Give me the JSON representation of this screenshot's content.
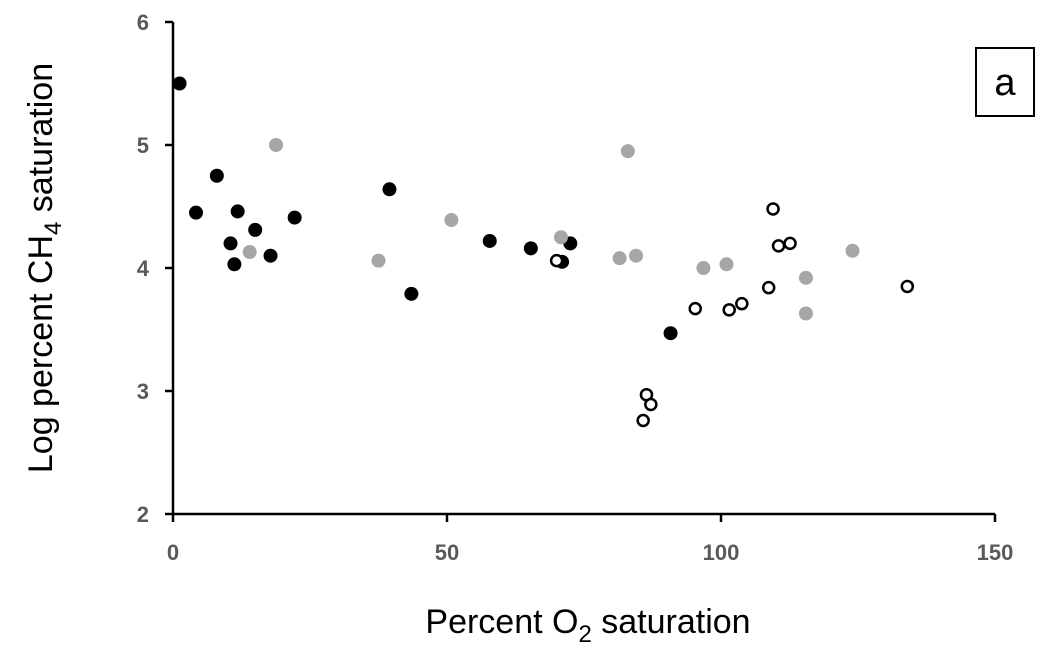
{
  "chart_data": {
    "type": "scatter",
    "panel_label": "a",
    "xlabel": {
      "prefix": "Percent O",
      "sub": "2",
      "suffix": " saturation"
    },
    "ylabel": {
      "prefix": "Log percent CH",
      "sub": "4",
      "suffix": " saturation"
    },
    "xlim": [
      0,
      150
    ],
    "ylim": [
      2,
      6
    ],
    "xticks": [
      "0",
      "50",
      "100",
      "150"
    ],
    "yticks": [
      "2",
      "3",
      "4",
      "5",
      "6"
    ],
    "grid": false,
    "colors": {
      "black": "#000000",
      "gray": "#a6a6a6",
      "open_fill": "#ffffff",
      "open_stroke": "#000000"
    },
    "series": [
      {
        "style": "filled-black",
        "points": [
          {
            "x": 1.2,
            "y": 5.5
          },
          {
            "x": 4.2,
            "y": 4.45
          },
          {
            "x": 8,
            "y": 4.75
          },
          {
            "x": 10.5,
            "y": 4.2
          },
          {
            "x": 11.2,
            "y": 4.03
          },
          {
            "x": 11.8,
            "y": 4.46
          },
          {
            "x": 15,
            "y": 4.31
          },
          {
            "x": 17.8,
            "y": 4.1
          },
          {
            "x": 22.2,
            "y": 4.41
          },
          {
            "x": 39.5,
            "y": 4.64
          },
          {
            "x": 43.5,
            "y": 3.79
          },
          {
            "x": 57.8,
            "y": 4.22
          },
          {
            "x": 65.3,
            "y": 4.16
          },
          {
            "x": 71,
            "y": 4.05
          },
          {
            "x": 72.5,
            "y": 4.2
          },
          {
            "x": 90.8,
            "y": 3.47
          }
        ]
      },
      {
        "style": "filled-gray",
        "points": [
          {
            "x": 14,
            "y": 4.13
          },
          {
            "x": 18.8,
            "y": 5.0
          },
          {
            "x": 37.5,
            "y": 4.06
          },
          {
            "x": 50.8,
            "y": 4.39
          },
          {
            "x": 70.8,
            "y": 4.25
          },
          {
            "x": 81.5,
            "y": 4.08
          },
          {
            "x": 83,
            "y": 4.95
          },
          {
            "x": 84.5,
            "y": 4.1
          },
          {
            "x": 96.8,
            "y": 4.0
          },
          {
            "x": 101,
            "y": 4.03
          },
          {
            "x": 115.5,
            "y": 3.92
          },
          {
            "x": 115.5,
            "y": 3.63
          },
          {
            "x": 124,
            "y": 4.14
          }
        ]
      },
      {
        "style": "open",
        "points": [
          {
            "x": 70,
            "y": 4.06
          },
          {
            "x": 85.8,
            "y": 2.76
          },
          {
            "x": 86.4,
            "y": 2.97
          },
          {
            "x": 87.2,
            "y": 2.89
          },
          {
            "x": 95.3,
            "y": 3.67
          },
          {
            "x": 101.5,
            "y": 3.66
          },
          {
            "x": 103.8,
            "y": 3.71
          },
          {
            "x": 108.7,
            "y": 3.84
          },
          {
            "x": 109.5,
            "y": 4.48
          },
          {
            "x": 110.5,
            "y": 4.18
          },
          {
            "x": 112.6,
            "y": 4.2
          },
          {
            "x": 134,
            "y": 3.85
          }
        ]
      }
    ]
  }
}
